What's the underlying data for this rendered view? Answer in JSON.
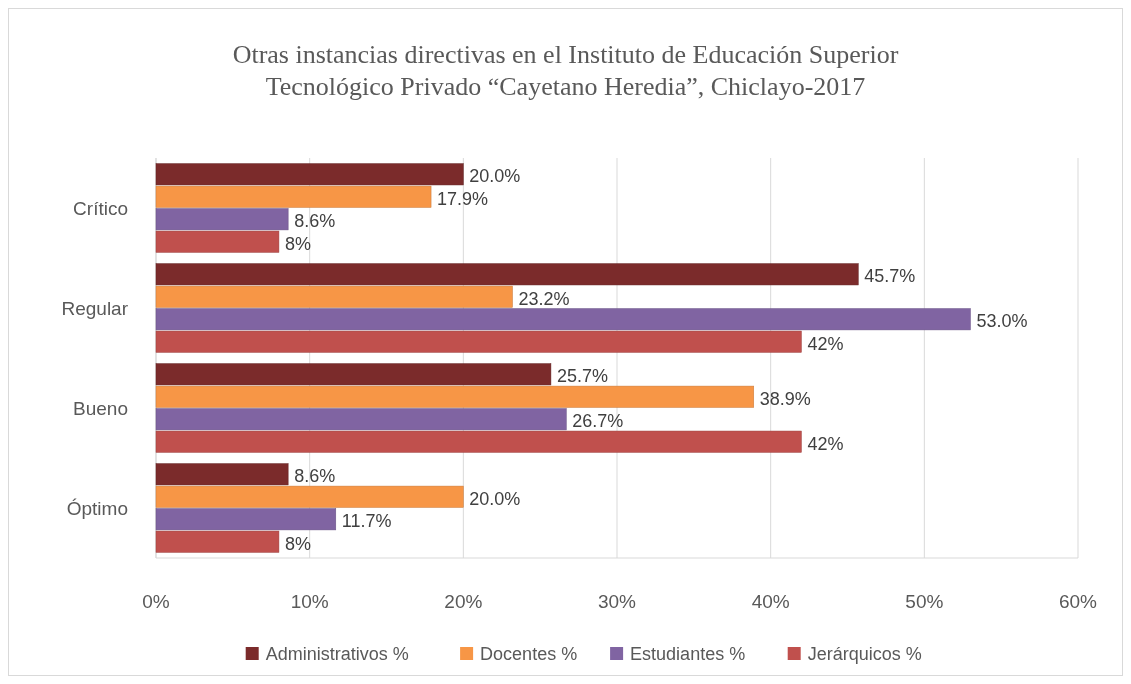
{
  "chart_data": {
    "type": "bar",
    "orientation": "horizontal",
    "title": "Otras instancias directivas en el Instituto de Educación Superior Tecnológico Privado “Cayetano Heredia”, Chiclayo-2017",
    "categories": [
      "Crítico",
      "Regular",
      "Bueno",
      "Óptimo"
    ],
    "series": [
      {
        "name": "Administrativos %",
        "color": "#7b2b2b",
        "values": [
          20.0,
          45.7,
          25.7,
          8.6
        ],
        "value_labels": [
          "20.0%",
          "45.7%",
          "25.7%",
          "8.6%"
        ]
      },
      {
        "name": "Docentes %",
        "color": "#f79646",
        "values": [
          17.9,
          23.2,
          38.9,
          20.0
        ],
        "value_labels": [
          "17.9%",
          "23.2%",
          "38.9%",
          "20.0%"
        ]
      },
      {
        "name": "Estudiantes %",
        "color": "#8064a2",
        "values": [
          8.6,
          53.0,
          26.7,
          11.7
        ],
        "value_labels": [
          "8.6%",
          "53.0%",
          "26.7%",
          "11.7%"
        ]
      },
      {
        "name": "Jerárquicos %",
        "color": "#c0504d",
        "values": [
          8,
          42,
          42,
          8
        ],
        "value_labels": [
          "8%",
          "42%",
          "42%",
          "8%"
        ]
      }
    ],
    "xlim": [
      0,
      60
    ],
    "xticks": [
      {
        "value": 0,
        "label": "0%"
      },
      {
        "value": 10,
        "label": "10%"
      },
      {
        "value": 20,
        "label": "20%"
      },
      {
        "value": 30,
        "label": "30%"
      },
      {
        "value": 40,
        "label": "40%"
      },
      {
        "value": 50,
        "label": "50%"
      },
      {
        "value": 60,
        "label": "60%"
      }
    ],
    "grid": "x",
    "legend": "bottom"
  }
}
